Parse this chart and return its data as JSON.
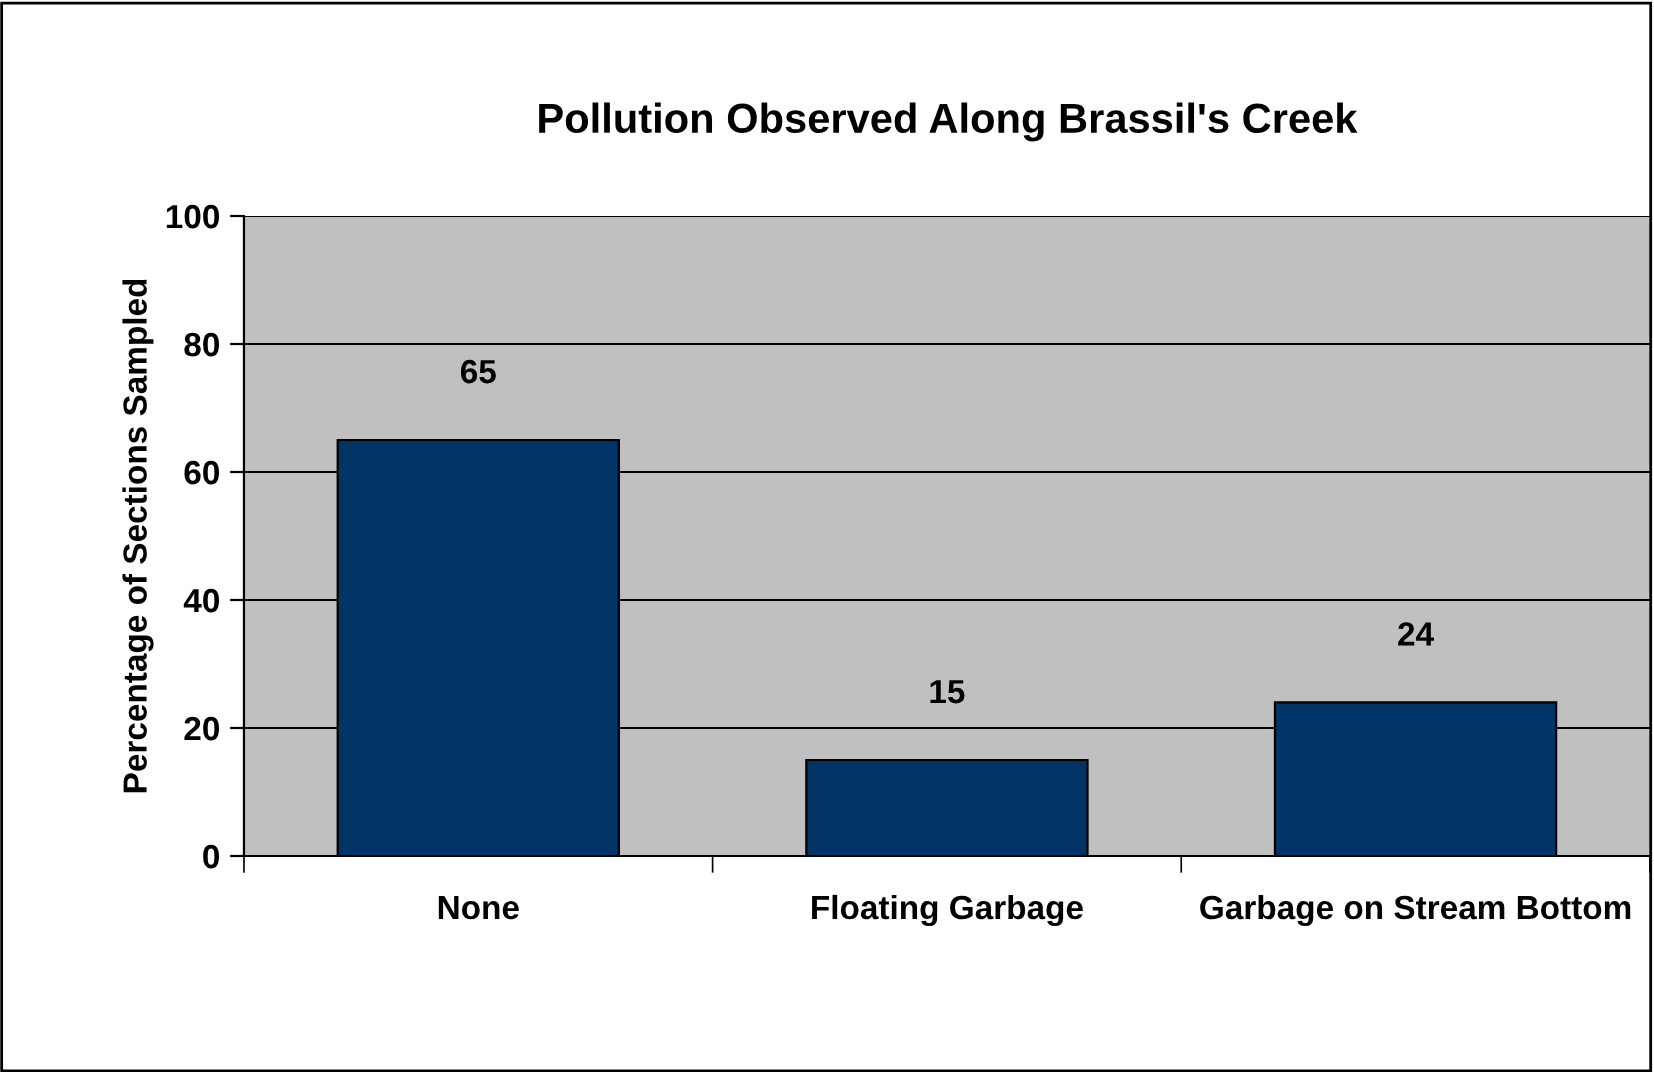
{
  "chart_data": {
    "type": "bar",
    "title": "Pollution Observed Along Brassil's Creek",
    "ylabel": "Percentage of Sections Sampled",
    "categories": [
      "None",
      "Floating Garbage",
      "Garbage on Stream Bottom"
    ],
    "values": [
      65,
      15,
      24
    ],
    "color": "#003366",
    "ylim": [
      0,
      100
    ],
    "yticks": [
      0,
      20,
      40,
      60,
      80,
      100
    ],
    "grid": "y",
    "data_labels": true,
    "legend": false
  }
}
